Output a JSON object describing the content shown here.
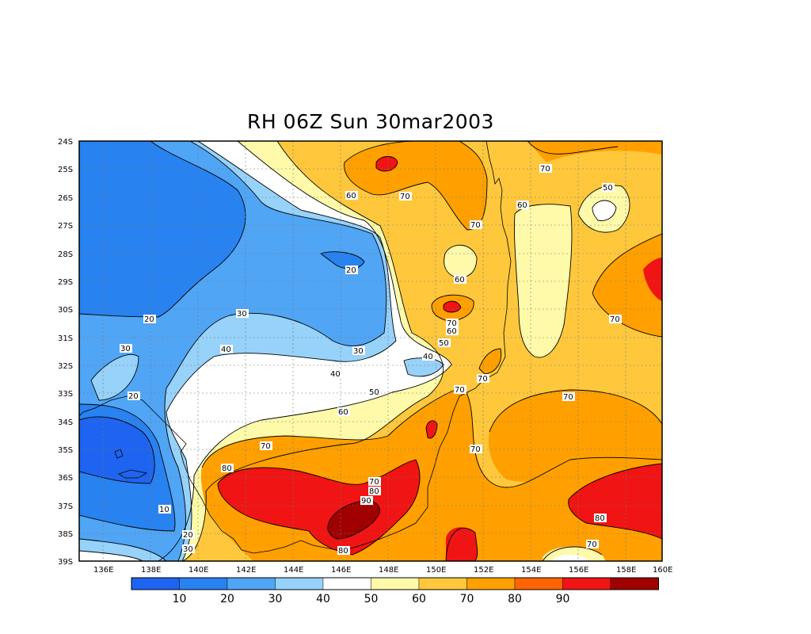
{
  "title": "RH 06Z Sun 30mar2003",
  "lat_labels": [
    "24S",
    "25S",
    "26S",
    "27S",
    "28S",
    "29S",
    "30S",
    "31S",
    "32S",
    "33S",
    "34S",
    "35S",
    "36S",
    "37S",
    "38S",
    "39S"
  ],
  "lon_labels": [
    "136E",
    "138E",
    "140E",
    "142E",
    "144E",
    "146E",
    "148E",
    "150E",
    "152E",
    "154E",
    "156E",
    "158E",
    "160E"
  ],
  "colorbar": {
    "colors": [
      "#1e64f0",
      "#2882f0",
      "#50a5f5",
      "#96d2fa",
      "#ffffff",
      "#fffaaa",
      "#ffc83c",
      "#ffa000",
      "#ff6400",
      "#f01414",
      "#a00000"
    ],
    "labels": [
      "10",
      "20",
      "30",
      "40",
      "50",
      "60",
      "70",
      "80",
      "90"
    ]
  },
  "contour_labels": [
    {
      "id": "c70a",
      "text": "70"
    },
    {
      "id": "c50a",
      "text": "50"
    },
    {
      "id": "c60a",
      "text": "60"
    },
    {
      "id": "c70b",
      "text": "70"
    },
    {
      "id": "c60b",
      "text": "60"
    },
    {
      "id": "c70c",
      "text": "70"
    },
    {
      "id": "c20a",
      "text": "20"
    },
    {
      "id": "c60c",
      "text": "60"
    },
    {
      "id": "c20b",
      "text": "20"
    },
    {
      "id": "c30a",
      "text": "30"
    },
    {
      "id": "c70d",
      "text": "70"
    },
    {
      "id": "c60d",
      "text": "60"
    },
    {
      "id": "c70e",
      "text": "70"
    },
    {
      "id": "c30b",
      "text": "30"
    },
    {
      "id": "c40a",
      "text": "40"
    },
    {
      "id": "c30c",
      "text": "30"
    },
    {
      "id": "c50b",
      "text": "50"
    },
    {
      "id": "c40b",
      "text": "40"
    },
    {
      "id": "c40c",
      "text": "40"
    },
    {
      "id": "c70f",
      "text": "70"
    },
    {
      "id": "c20c",
      "text": "20"
    },
    {
      "id": "c50c",
      "text": "50"
    },
    {
      "id": "c70g",
      "text": "70"
    },
    {
      "id": "c70h",
      "text": "70"
    },
    {
      "id": "c60e",
      "text": "60"
    },
    {
      "id": "c70i",
      "text": "70"
    },
    {
      "id": "c70j",
      "text": "70"
    },
    {
      "id": "c80a",
      "text": "80"
    },
    {
      "id": "c70k",
      "text": "70"
    },
    {
      "id": "c80b",
      "text": "80"
    },
    {
      "id": "c90a",
      "text": "90"
    },
    {
      "id": "c10a",
      "text": "10"
    },
    {
      "id": "c20d",
      "text": "20"
    },
    {
      "id": "c30d",
      "text": "30"
    },
    {
      "id": "c80c",
      "text": "80"
    },
    {
      "id": "c80d",
      "text": "80"
    },
    {
      "id": "c70l",
      "text": "70"
    }
  ]
}
